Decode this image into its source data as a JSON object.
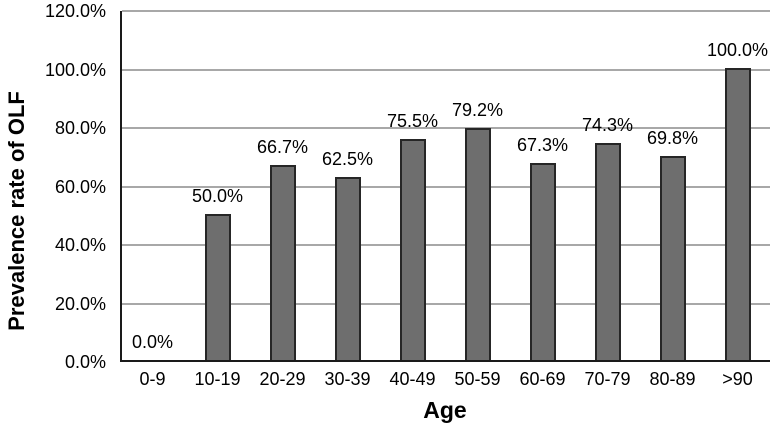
{
  "chart_data": {
    "type": "bar",
    "categories": [
      "0-9",
      "10-19",
      "20-29",
      "30-39",
      "40-49",
      "50-59",
      "60-69",
      "70-79",
      "80-89",
      ">90"
    ],
    "values": [
      0.0,
      50.0,
      66.7,
      62.5,
      75.5,
      79.2,
      67.3,
      74.3,
      69.8,
      100.0
    ],
    "data_labels": [
      "0.0%",
      "50.0%",
      "66.7%",
      "62.5%",
      "75.5%",
      "79.2%",
      "67.3%",
      "74.3%",
      "69.8%",
      "100.0%"
    ],
    "xlabel": "Age",
    "ylabel": "Prevalence rate of OLF",
    "y_ticks": [
      "0.0%",
      "20.0%",
      "40.0%",
      "60.0%",
      "80.0%",
      "100.0%",
      "120.0%"
    ],
    "ylim": [
      0,
      120
    ],
    "y_tick_step": 20,
    "grid": "horizontal-only",
    "legend": "none",
    "bar_color": "#6e6e6e",
    "bar_border_color": "#262626",
    "gridline_color": "#a8a8a8",
    "axis_color": "#1a1a1a",
    "label_color": "#000000"
  }
}
